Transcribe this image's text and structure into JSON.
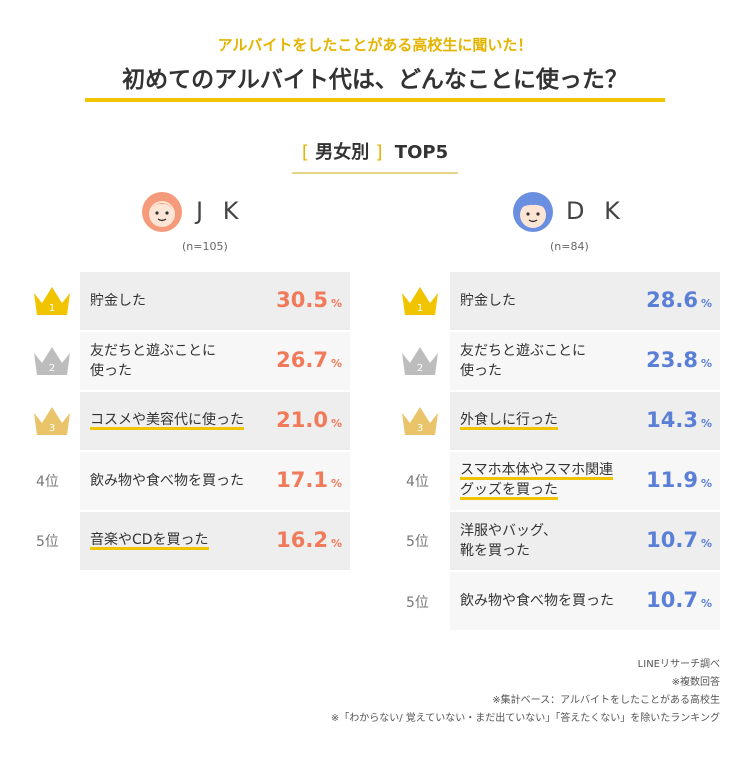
{
  "header": {
    "subtitle": "アルバイトをしたことがある高校生に聞いた！",
    "title": "初めてのアルバイト代は、どんなことに使った？"
  },
  "section": {
    "bracket_open": "[",
    "label": "男女別",
    "bracket_close": "]",
    "suffix": "TOP5"
  },
  "colors": {
    "accent_yellow": "#f0c400",
    "jk_color": "#f07a5a",
    "dk_color": "#5a7fd6",
    "gold": "#f0c400",
    "silver": "#bdbdbd",
    "bronze": "#e9c46a"
  },
  "unit": "%",
  "groups": {
    "jk": {
      "label": "J K",
      "n": "(n=105)",
      "icon": "girl-face-icon",
      "ranks": [
        {
          "rank_label": "1",
          "item": "貯金した",
          "item2": "",
          "value": "30.5"
        },
        {
          "rank_label": "2",
          "item": "友だちと遊ぶことに",
          "item2": "使った",
          "value": "26.7"
        },
        {
          "rank_label": "3",
          "item": "コスメや美容代に使った",
          "item2": "",
          "value": "21.0"
        },
        {
          "rank_label": "4位",
          "item": "飲み物や食べ物を買った",
          "item2": "",
          "value": "17.1"
        },
        {
          "rank_label": "5位",
          "item": "音楽やCDを買った",
          "item2": "",
          "value": "16.2"
        }
      ]
    },
    "dk": {
      "label": "D K",
      "n": "(n=84)",
      "icon": "boy-face-icon",
      "ranks": [
        {
          "rank_label": "1",
          "item": "貯金した",
          "item2": "",
          "value": "28.6"
        },
        {
          "rank_label": "2",
          "item": "友だちと遊ぶことに",
          "item2": "使った",
          "value": "23.8"
        },
        {
          "rank_label": "3",
          "item": "外食しに行った",
          "item2": "",
          "value": "14.3"
        },
        {
          "rank_label": "4位",
          "item": "スマホ本体やスマホ関連",
          "item2": "グッズを買った",
          "value": "11.9"
        },
        {
          "rank_label": "5位",
          "item": "洋服やバッグ、",
          "item2": "靴を買った",
          "value": "10.7"
        },
        {
          "rank_label": "5位",
          "item": "飲み物や食べ物を買った",
          "item2": "",
          "value": "10.7"
        }
      ]
    }
  },
  "chart_data": [
    {
      "type": "table",
      "title": "JK",
      "categories": [
        "貯金した",
        "友だちと遊ぶことに使った",
        "コスメや美容代に使った",
        "飲み物や食べ物を買った",
        "音楽やCDを買った"
      ],
      "values": [
        30.5,
        26.7,
        21.0,
        17.1,
        16.2
      ]
    },
    {
      "type": "table",
      "title": "DK",
      "categories": [
        "貯金した",
        "友だちと遊ぶことに使った",
        "外食しに行った",
        "スマホ本体やスマホ関連グッズを買った",
        "洋服やバッグ、靴を買った",
        "飲み物や食べ物を買った"
      ],
      "values": [
        28.6,
        23.8,
        14.3,
        11.9,
        10.7,
        10.7
      ]
    }
  ],
  "notes": [
    "LINEリサーチ調べ",
    "※複数回答",
    "※集計ベース：アルバイトをしたことがある高校生",
    "※「わからない/ 覚えていない・まだ出ていない」「答えたくない」を除いたランキング"
  ]
}
